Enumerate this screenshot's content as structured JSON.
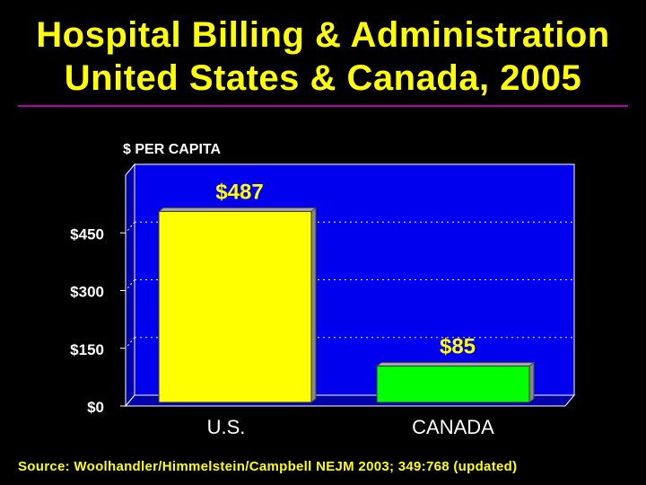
{
  "slide": {
    "title_line1": "Hospital Billing & Administration",
    "title_line2": "United States & Canada, 2005",
    "source": "Source: Woolhandler/Himmelstein/Campbell NEJM 2003; 349:768 (updated)"
  },
  "colors": {
    "background": "#000000",
    "title": "#ffff00",
    "rule": "#b000b0",
    "plot_background": "#0000ee",
    "gridline": "#ffffff",
    "us_bar": "#ffff00",
    "canada_bar": "#00ff00",
    "label": "#ffff00",
    "axis_text": "#ffffff"
  },
  "chart_data": {
    "type": "bar",
    "title": "Hospital Billing & Administration United States & Canada, 2005",
    "ylabel": "$ PER CAPITA",
    "xlabel": "",
    "categories": [
      "U.S.",
      "CANADA"
    ],
    "values": [
      487,
      85
    ],
    "value_labels": [
      "$487",
      "$85"
    ],
    "bar_colors": [
      "#ffff00",
      "#00ff00"
    ],
    "ylim": [
      0,
      600
    ],
    "yticks": [
      0,
      150,
      300,
      450
    ],
    "ytick_labels": [
      "$0",
      "$150",
      "$300",
      "$450"
    ],
    "grid": true
  }
}
